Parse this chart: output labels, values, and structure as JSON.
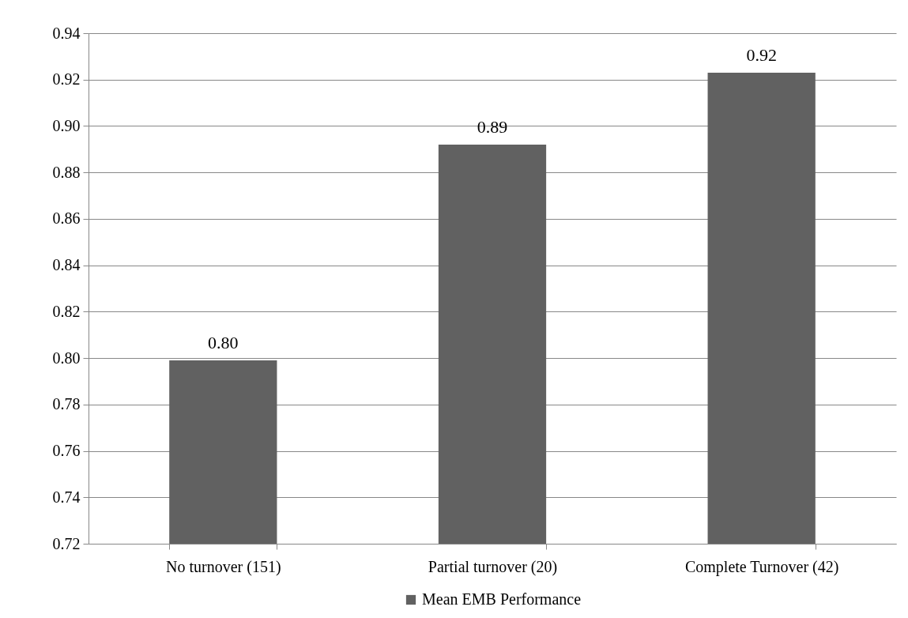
{
  "chart_data": {
    "type": "bar",
    "categories": [
      "No turnover (151)",
      "Partial turnover (20)",
      "Complete Turnover (42)"
    ],
    "series": [
      {
        "name": "Mean EMB Performance",
        "color": "#616161",
        "values": [
          0.799,
          0.892,
          0.923
        ],
        "value_labels": [
          "0.80",
          "0.89",
          "0.92"
        ]
      }
    ],
    "ylim": [
      0.72,
      0.94
    ],
    "yticks": [
      0.72,
      0.74,
      0.76,
      0.78,
      {
        "value": 0.8,
        "label": "0.80"
      },
      0.82,
      0.84,
      0.86,
      0.88,
      {
        "value": 0.9,
        "label": "0.90"
      },
      0.92,
      0.94
    ],
    "grid": "y",
    "legend": "bottom"
  }
}
